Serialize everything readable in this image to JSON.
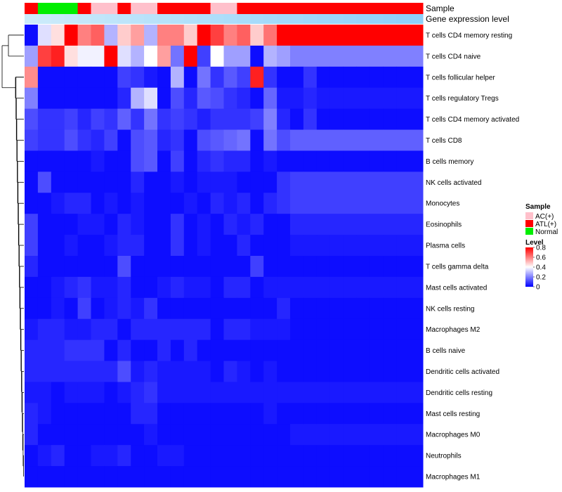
{
  "chart_data": {
    "type": "heatmap",
    "title": "",
    "annotations": {
      "sample": {
        "label": "Sample",
        "values": [
          "ATL(+)",
          "Normal",
          "Normal",
          "Normal",
          "ATL(+)",
          "AC(+)",
          "AC(+)",
          "ATL(+)",
          "AC(+)",
          "AC(+)",
          "ATL(+)",
          "ATL(+)",
          "ATL(+)",
          "ATL(+)",
          "AC(+)",
          "AC(+)",
          "ATL(+)",
          "ATL(+)",
          "ATL(+)",
          "ATL(+)",
          "ATL(+)",
          "ATL(+)",
          "ATL(+)",
          "ATL(+)",
          "ATL(+)",
          "ATL(+)",
          "ATL(+)",
          "ATL(+)",
          "ATL(+)",
          "ATL(+)"
        ],
        "colors": {
          "AC(+)": "#ffc0cb",
          "ATL(+)": "#ff0000",
          "Normal": "#00ee00"
        }
      },
      "expression": {
        "label": "Gene expression level",
        "values": [
          0.05,
          0.08,
          0.11,
          0.14,
          0.17,
          0.2,
          0.23,
          0.26,
          0.29,
          0.32,
          0.35,
          0.38,
          0.41,
          0.44,
          0.47,
          0.5,
          0.53,
          0.56,
          0.59,
          0.62,
          0.65,
          0.68,
          0.71,
          0.74,
          0.77,
          0.8,
          0.83,
          0.86,
          0.89,
          0.92
        ],
        "low_color": "#d0ecfa",
        "high_color": "#87cefa"
      }
    },
    "rows": [
      "T cells CD4 memory resting",
      "T cells CD4 naive",
      "T cells follicular helper",
      "T cells regulatory  Tregs",
      "T cells CD4 memory activated",
      "T cells CD8",
      "B cells memory",
      "NK cells activated",
      "Monocytes",
      "Eosinophils",
      "Plasma cells",
      "T cells gamma delta",
      "Mast cells activated",
      "NK cells resting",
      "Macrophages M2",
      "B cells naive",
      "Dendritic cells activated",
      "Dendritic cells resting",
      "Mast cells resting",
      "Macrophages M0",
      "Neutrophils",
      "Macrophages M1"
    ],
    "values": [
      [
        0.02,
        0.35,
        0.45,
        0.8,
        0.6,
        0.65,
        0.28,
        0.48,
        0.55,
        0.28,
        0.6,
        0.6,
        0.48,
        0.8,
        0.7,
        0.6,
        0.65,
        0.48,
        0.62,
        0.8,
        0.8,
        0.8,
        0.8,
        0.8,
        0.8,
        0.8,
        0.8,
        0.8,
        0.8,
        0.8
      ],
      [
        0.25,
        0.7,
        0.75,
        0.45,
        0.38,
        0.38,
        0.8,
        0.35,
        0.28,
        0.4,
        0.55,
        0.18,
        0.8,
        0.1,
        0.4,
        0.25,
        0.25,
        0.02,
        0.28,
        0.25,
        0.2,
        0.2,
        0.2,
        0.2,
        0.2,
        0.2,
        0.2,
        0.2,
        0.2,
        0.2
      ],
      [
        0.58,
        0.02,
        0.02,
        0.02,
        0.02,
        0.02,
        0.02,
        0.1,
        0.08,
        0.04,
        0.02,
        0.28,
        0.02,
        0.18,
        0.08,
        0.14,
        0.1,
        0.75,
        0.08,
        0.02,
        0.02,
        0.08,
        0.02,
        0.02,
        0.02,
        0.02,
        0.02,
        0.02,
        0.02,
        0.02
      ],
      [
        0.2,
        0.02,
        0.02,
        0.02,
        0.02,
        0.02,
        0.02,
        0.06,
        0.28,
        0.35,
        0.02,
        0.12,
        0.06,
        0.14,
        0.12,
        0.08,
        0.06,
        0.02,
        0.16,
        0.04,
        0.04,
        0.06,
        0.04,
        0.04,
        0.04,
        0.04,
        0.04,
        0.04,
        0.04,
        0.04
      ],
      [
        0.12,
        0.08,
        0.08,
        0.1,
        0.06,
        0.1,
        0.08,
        0.15,
        0.08,
        0.18,
        0.08,
        0.1,
        0.08,
        0.05,
        0.08,
        0.08,
        0.08,
        0.1,
        0.2,
        0.06,
        0.02,
        0.08,
        0.02,
        0.02,
        0.02,
        0.02,
        0.02,
        0.02,
        0.02,
        0.02
      ],
      [
        0.1,
        0.08,
        0.08,
        0.12,
        0.08,
        0.06,
        0.1,
        0.02,
        0.12,
        0.14,
        0.06,
        0.08,
        0.02,
        0.12,
        0.14,
        0.16,
        0.18,
        0.02,
        0.18,
        0.12,
        0.15,
        0.15,
        0.15,
        0.15,
        0.15,
        0.15,
        0.15,
        0.15,
        0.15,
        0.15
      ],
      [
        0.02,
        0.02,
        0.02,
        0.02,
        0.02,
        0.04,
        0.02,
        0.02,
        0.12,
        0.14,
        0.02,
        0.1,
        0.02,
        0.06,
        0.08,
        0.06,
        0.06,
        0.02,
        0.04,
        0.02,
        0.02,
        0.02,
        0.02,
        0.02,
        0.02,
        0.02,
        0.02,
        0.02,
        0.02,
        0.02
      ],
      [
        0.02,
        0.12,
        0.02,
        0.02,
        0.02,
        0.02,
        0.02,
        0.02,
        0.06,
        0.02,
        0.02,
        0.04,
        0.02,
        0.04,
        0.04,
        0.04,
        0.02,
        0.02,
        0.02,
        0.08,
        0.1,
        0.1,
        0.1,
        0.1,
        0.1,
        0.1,
        0.1,
        0.1,
        0.1,
        0.1
      ],
      [
        0.02,
        0.02,
        0.04,
        0.06,
        0.06,
        0.02,
        0.04,
        0.02,
        0.04,
        0.02,
        0.02,
        0.02,
        0.04,
        0.02,
        0.06,
        0.04,
        0.06,
        0.02,
        0.06,
        0.08,
        0.1,
        0.1,
        0.1,
        0.1,
        0.1,
        0.1,
        0.1,
        0.1,
        0.1,
        0.1
      ],
      [
        0.1,
        0.02,
        0.02,
        0.02,
        0.04,
        0.04,
        0.02,
        0.06,
        0.04,
        0.02,
        0.02,
        0.08,
        0.02,
        0.04,
        0.02,
        0.06,
        0.04,
        0.06,
        0.02,
        0.02,
        0.06,
        0.06,
        0.06,
        0.06,
        0.06,
        0.06,
        0.06,
        0.06,
        0.06,
        0.06
      ],
      [
        0.1,
        0.02,
        0.02,
        0.04,
        0.02,
        0.02,
        0.04,
        0.06,
        0.06,
        0.02,
        0.02,
        0.08,
        0.02,
        0.04,
        0.02,
        0.02,
        0.06,
        0.02,
        0.02,
        0.02,
        0.04,
        0.04,
        0.04,
        0.04,
        0.04,
        0.04,
        0.04,
        0.04,
        0.04,
        0.04
      ],
      [
        0.06,
        0.02,
        0.02,
        0.02,
        0.02,
        0.02,
        0.02,
        0.12,
        0.02,
        0.02,
        0.02,
        0.02,
        0.02,
        0.02,
        0.02,
        0.02,
        0.02,
        0.1,
        0.02,
        0.02,
        0.02,
        0.02,
        0.02,
        0.02,
        0.02,
        0.02,
        0.02,
        0.02,
        0.02,
        0.02
      ],
      [
        0.02,
        0.02,
        0.04,
        0.06,
        0.08,
        0.04,
        0.04,
        0.06,
        0.02,
        0.02,
        0.04,
        0.06,
        0.04,
        0.04,
        0.02,
        0.06,
        0.06,
        0.02,
        0.04,
        0.04,
        0.04,
        0.04,
        0.04,
        0.04,
        0.04,
        0.04,
        0.04,
        0.04,
        0.04,
        0.04
      ],
      [
        0.02,
        0.02,
        0.04,
        0.02,
        0.1,
        0.02,
        0.04,
        0.06,
        0.04,
        0.08,
        0.02,
        0.02,
        0.02,
        0.02,
        0.02,
        0.02,
        0.02,
        0.02,
        0.02,
        0.06,
        0.02,
        0.02,
        0.02,
        0.02,
        0.02,
        0.02,
        0.02,
        0.02,
        0.02,
        0.02
      ],
      [
        0.04,
        0.06,
        0.06,
        0.04,
        0.04,
        0.06,
        0.06,
        0.02,
        0.06,
        0.06,
        0.06,
        0.06,
        0.06,
        0.06,
        0.02,
        0.06,
        0.06,
        0.04,
        0.04,
        0.04,
        0.02,
        0.02,
        0.02,
        0.02,
        0.02,
        0.02,
        0.02,
        0.02,
        0.02,
        0.02
      ],
      [
        0.06,
        0.06,
        0.06,
        0.08,
        0.08,
        0.08,
        0.02,
        0.06,
        0.02,
        0.02,
        0.06,
        0.02,
        0.06,
        0.02,
        0.02,
        0.02,
        0.02,
        0.02,
        0.02,
        0.02,
        0.02,
        0.02,
        0.02,
        0.02,
        0.02,
        0.02,
        0.02,
        0.02,
        0.02,
        0.02
      ],
      [
        0.06,
        0.06,
        0.06,
        0.06,
        0.06,
        0.06,
        0.06,
        0.12,
        0.04,
        0.06,
        0.04,
        0.04,
        0.04,
        0.04,
        0.02,
        0.06,
        0.04,
        0.02,
        0.04,
        0.02,
        0.02,
        0.02,
        0.02,
        0.02,
        0.02,
        0.02,
        0.02,
        0.02,
        0.02,
        0.02
      ],
      [
        0.04,
        0.04,
        0.02,
        0.04,
        0.04,
        0.04,
        0.02,
        0.04,
        0.06,
        0.08,
        0.04,
        0.04,
        0.04,
        0.04,
        0.04,
        0.04,
        0.04,
        0.04,
        0.04,
        0.04,
        0.04,
        0.04,
        0.04,
        0.04,
        0.04,
        0.04,
        0.04,
        0.04,
        0.04,
        0.04
      ],
      [
        0.06,
        0.04,
        0.02,
        0.02,
        0.02,
        0.02,
        0.02,
        0.02,
        0.06,
        0.06,
        0.02,
        0.02,
        0.02,
        0.02,
        0.02,
        0.02,
        0.02,
        0.02,
        0.04,
        0.02,
        0.02,
        0.02,
        0.02,
        0.02,
        0.02,
        0.02,
        0.02,
        0.02,
        0.02,
        0.02
      ],
      [
        0.06,
        0.02,
        0.02,
        0.02,
        0.02,
        0.02,
        0.02,
        0.02,
        0.02,
        0.04,
        0.02,
        0.02,
        0.02,
        0.02,
        0.02,
        0.02,
        0.02,
        0.02,
        0.02,
        0.02,
        0.04,
        0.04,
        0.04,
        0.04,
        0.04,
        0.04,
        0.04,
        0.04,
        0.04,
        0.04
      ],
      [
        0.02,
        0.04,
        0.06,
        0.02,
        0.02,
        0.04,
        0.04,
        0.06,
        0.02,
        0.02,
        0.04,
        0.04,
        0.02,
        0.02,
        0.02,
        0.02,
        0.02,
        0.02,
        0.02,
        0.02,
        0.02,
        0.02,
        0.02,
        0.02,
        0.02,
        0.02,
        0.02,
        0.02,
        0.02,
        0.02
      ],
      [
        0.02,
        0.02,
        0.02,
        0.02,
        0.02,
        0.02,
        0.02,
        0.02,
        0.02,
        0.02,
        0.02,
        0.02,
        0.02,
        0.02,
        0.02,
        0.02,
        0.02,
        0.02,
        0.02,
        0.02,
        0.02,
        0.02,
        0.02,
        0.02,
        0.02,
        0.02,
        0.02,
        0.02,
        0.02,
        0.02
      ]
    ],
    "color_scale": {
      "min": 0,
      "max": 0.8,
      "stops": [
        {
          "value": 0,
          "color": "#0000ff"
        },
        {
          "value": 0.4,
          "color": "#ffffff"
        },
        {
          "value": 0.8,
          "color": "#ff0000"
        }
      ]
    },
    "legend": {
      "sample_title": "Sample",
      "sample_items": [
        "AC(+)",
        "ATL(+)",
        "Normal"
      ],
      "level_title": "Level",
      "level_ticks": [
        "0.8",
        "0.6",
        "0.4",
        "0.2",
        "0"
      ],
      "placement": "right"
    },
    "dendrogram": "rows"
  }
}
